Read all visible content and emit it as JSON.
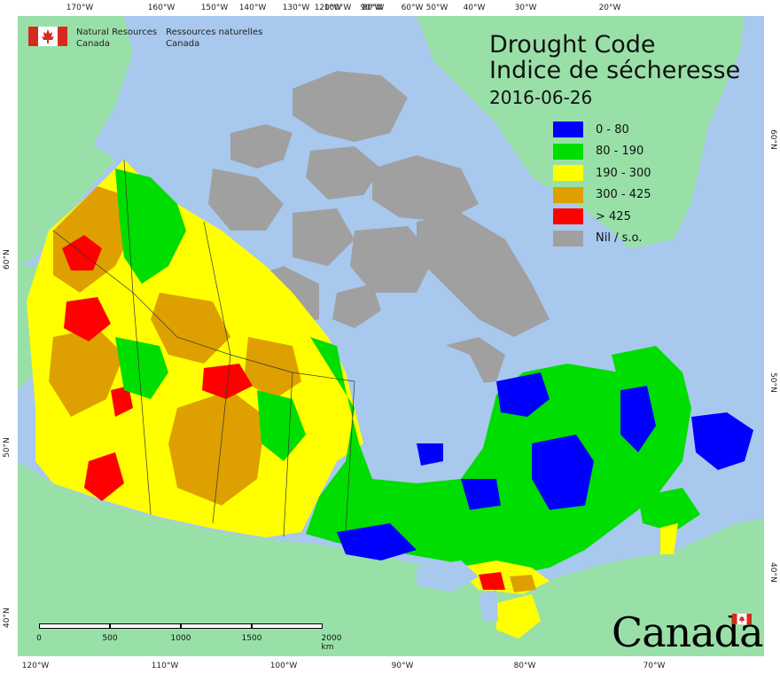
{
  "title": {
    "en": "Drought Code",
    "fr": "Indice de sécheresse",
    "date": "2016-06-26"
  },
  "agency": {
    "en_line1": "Natural Resources",
    "en_line2": "Canada",
    "fr_line1": "Ressources naturelles",
    "fr_line2": "Canada"
  },
  "legend": [
    {
      "label": "0 - 80",
      "color": "#0000ff"
    },
    {
      "label": "80 - 190",
      "color": "#00dd00"
    },
    {
      "label": "190 - 300",
      "color": "#ffff00"
    },
    {
      "label": "300 - 425",
      "color": "#dda000"
    },
    {
      "label": "> 425",
      "color": "#ff0000"
    },
    {
      "label": "Nil / s.o.",
      "color": "#a0a0a0"
    }
  ],
  "top_ticks": [
    "170°W",
    "160°W",
    "150°W",
    "140°W",
    "130°W",
    "120°W",
    "100°W",
    "90°W",
    "80°W",
    "60°W",
    "50°W",
    "40°W",
    "30°W",
    "20°W"
  ],
  "bottom_ticks": [
    "120°W",
    "110°W",
    "100°W",
    "90°W",
    "80°W",
    "70°W"
  ],
  "left_ticks": [
    "60°N",
    "50°N",
    "40°N"
  ],
  "right_ticks": [
    "60°N",
    "50°N",
    "40°N"
  ],
  "scale_bar": {
    "labels": [
      "0",
      "500",
      "1000",
      "1500",
      "2000 km"
    ]
  },
  "wordmark": "Canada",
  "colors": {
    "ocean": "#a8c8ee",
    "foreign_land": "#99e0a8",
    "no_data": "#a0a0a0",
    "flag_red": "#d52b1e"
  }
}
